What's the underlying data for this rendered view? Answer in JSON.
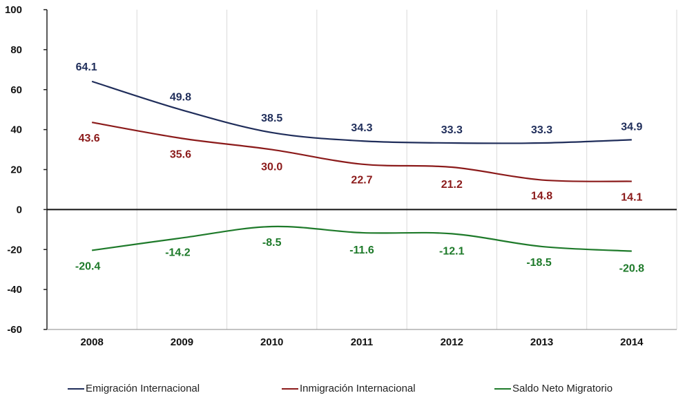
{
  "chart_data": {
    "type": "line",
    "categories": [
      "2008",
      "2009",
      "2010",
      "2011",
      "2012",
      "2013",
      "2014"
    ],
    "ylim": [
      -60,
      100
    ],
    "yticks": [
      "100",
      "80",
      "60",
      "40",
      "20",
      "0",
      "-20",
      "-40",
      "-60"
    ],
    "ytick_values": [
      100,
      80,
      60,
      40,
      20,
      0,
      -20,
      -40,
      -60
    ],
    "grid": "vertical",
    "legend_position": "bottom",
    "series": [
      {
        "name": "Emigración Internacional",
        "color": "#1f2d5a",
        "values": [
          64.1,
          49.8,
          38.5,
          34.3,
          33.3,
          33.3,
          34.9
        ],
        "labels": [
          "64.1",
          "49.8",
          "38.5",
          "34.3",
          "33.3",
          "33.3",
          "34.9"
        ]
      },
      {
        "name": "Inmigración Internacional",
        "color": "#8b1a1a",
        "values": [
          43.6,
          35.6,
          30.0,
          22.7,
          21.2,
          14.8,
          14.1
        ],
        "labels": [
          "43.6",
          "35.6",
          "30.0",
          "22.7",
          "21.2",
          "14.8",
          "14.1"
        ]
      },
      {
        "name": "Saldo Neto Migratorio",
        "color": "#1e7a2a",
        "values": [
          -20.4,
          -14.2,
          -8.5,
          -11.6,
          -12.1,
          -18.5,
          -20.8
        ],
        "labels": [
          "-20.4",
          "-14.2",
          "-8.5",
          "-11.6",
          "-12.1",
          "-18.5",
          "-20.8"
        ]
      }
    ]
  },
  "legend": {
    "items": [
      {
        "label": "Emigración Internacional",
        "color": "#1f2d5a"
      },
      {
        "label": "Inmigración Internacional",
        "color": "#8b1a1a"
      },
      {
        "label": "Saldo Neto Migratorio",
        "color": "#1e7a2a"
      }
    ]
  }
}
